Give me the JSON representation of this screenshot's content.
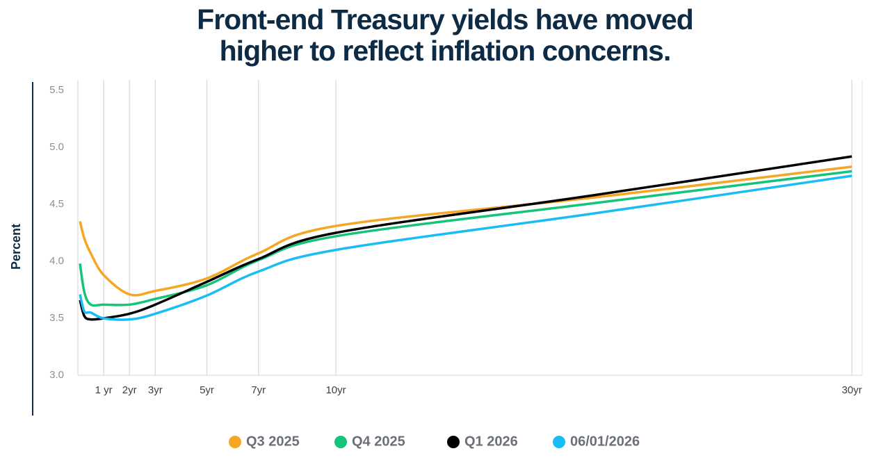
{
  "chart_data": {
    "type": "line",
    "title": [
      "Front-end Treasury yields have moved",
      "higher to reflect inflation concerns."
    ],
    "y_label": "Percent",
    "x": [
      0.083,
      0.25,
      0.5,
      1,
      2,
      3,
      5,
      7,
      10,
      20,
      30
    ],
    "xlim": [
      0,
      30.4
    ],
    "xticks": [
      {
        "value": 1,
        "label": "1 yr"
      },
      {
        "value": 2,
        "label": "2yr"
      },
      {
        "value": 3,
        "label": "3yr"
      },
      {
        "value": 5,
        "label": "5yr"
      },
      {
        "value": 7,
        "label": "7yr"
      },
      {
        "value": 10,
        "label": "10yr"
      },
      {
        "value": 30,
        "label": "30yr"
      }
    ],
    "ylim": [
      3.0,
      5.5
    ],
    "yticks": [
      {
        "value": 3,
        "label": "3.0"
      },
      3.5,
      {
        "value": 4,
        "label": "4.0"
      },
      4.5,
      {
        "value": 5,
        "label": "5.0"
      },
      5.5
    ],
    "grid": true,
    "series": [
      {
        "name": "Q3 2025",
        "color": "#f5a623",
        "values": [
          4.35,
          4.2,
          4.07,
          3.88,
          3.71,
          3.74,
          3.85,
          4.07,
          4.31,
          4.56,
          4.83
        ]
      },
      {
        "name": "Q4 2025",
        "color": "#14c47b",
        "values": [
          3.98,
          3.73,
          3.62,
          3.62,
          3.62,
          3.67,
          3.79,
          4.01,
          4.22,
          4.51,
          4.79
        ]
      },
      {
        "name": "Q1 2026",
        "color": "#000000",
        "values": [
          3.66,
          3.52,
          3.49,
          3.5,
          3.54,
          3.62,
          3.82,
          4.02,
          4.25,
          4.58,
          4.92
        ]
      },
      {
        "name": "06/01/2026",
        "color": "#19bdf5",
        "values": [
          3.71,
          3.56,
          3.55,
          3.5,
          3.49,
          3.54,
          3.7,
          3.91,
          4.1,
          4.42,
          4.75
        ]
      }
    ]
  }
}
